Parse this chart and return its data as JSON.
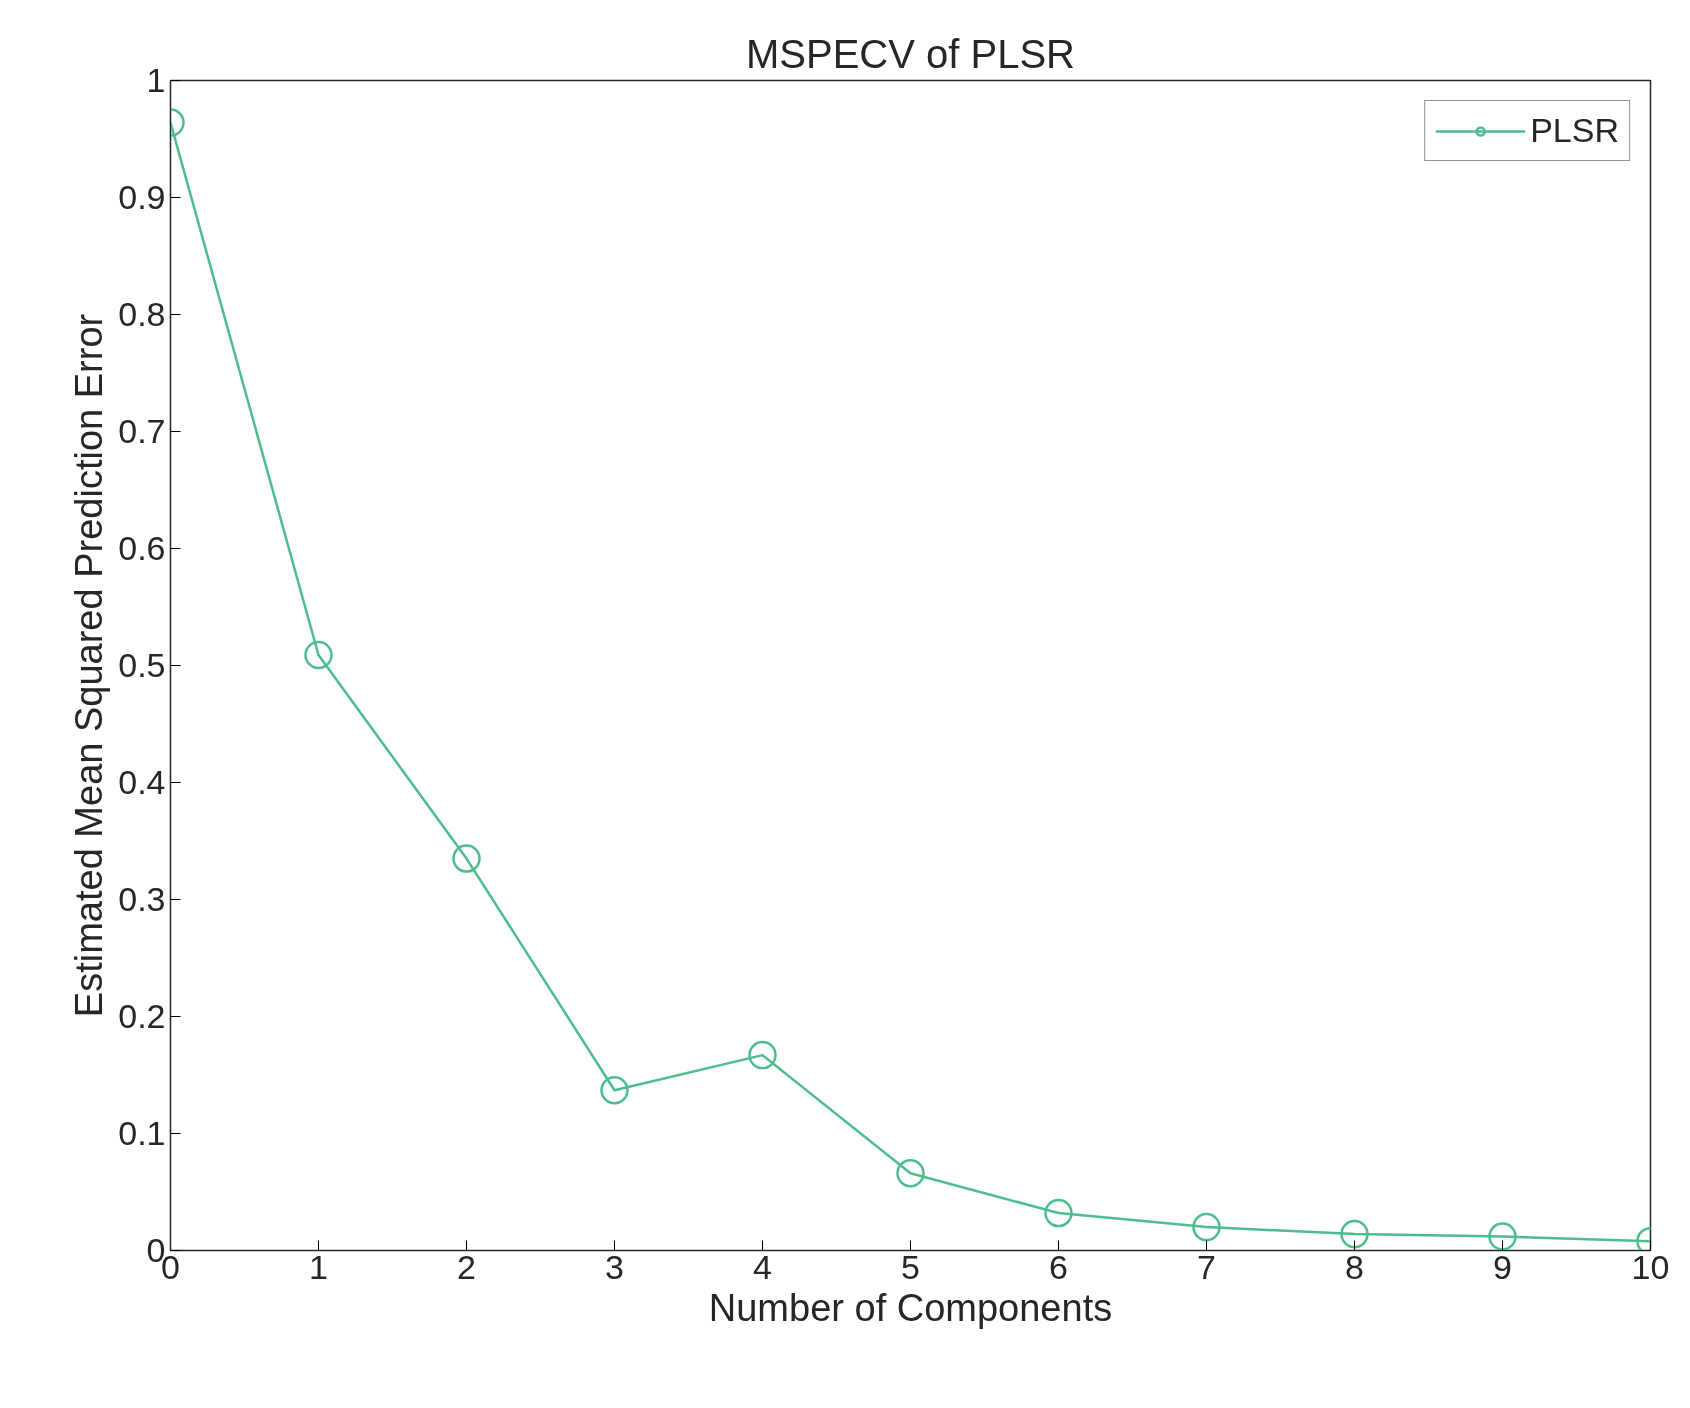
{
  "chart_data": {
    "type": "line",
    "title": "MSPECV of PLSR",
    "xlabel": "Number of Components",
    "ylabel": "Estimated Mean Squared Prediction Error",
    "x": [
      0,
      1,
      2,
      3,
      4,
      5,
      6,
      7,
      8,
      9,
      10
    ],
    "series": [
      {
        "name": "PLSR",
        "color": "#4dbd8f",
        "values": [
          0.964,
          0.509,
          0.335,
          0.137,
          0.167,
          0.066,
          0.032,
          0.02,
          0.014,
          0.012,
          0.008
        ]
      }
    ],
    "xlim": [
      0,
      10
    ],
    "xticks": [
      0,
      1,
      2,
      3,
      4,
      5,
      6,
      7,
      8,
      9,
      10
    ],
    "ylim": [
      0,
      1
    ],
    "yticks": [
      0,
      0.1,
      0.2,
      0.3,
      0.4,
      0.5,
      0.6,
      0.7,
      0.8,
      0.9,
      1
    ],
    "grid": false,
    "legend": "top right",
    "marker": "circle",
    "line_style": "solid"
  }
}
